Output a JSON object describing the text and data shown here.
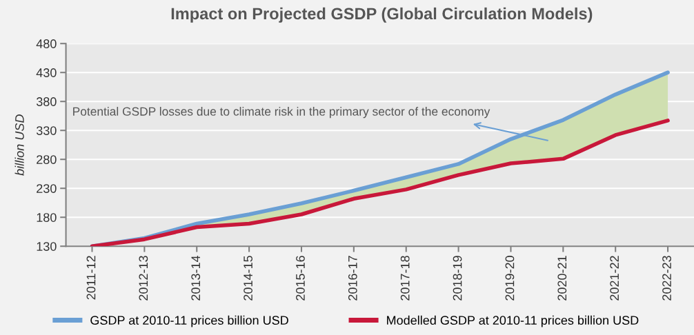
{
  "chart_data": {
    "type": "line",
    "title": "Impact on Projected GSDP (Global Circulation Models)",
    "ylabel": "billion USD",
    "categories": [
      "2011-12",
      "2012-13",
      "2013-14",
      "2014-15",
      "2015-16",
      "2016-17",
      "2017-18",
      "2018-19",
      "2019-20",
      "2020-21",
      "2021-22",
      "2022-23"
    ],
    "series": [
      {
        "name": "GSDP at 2010-11 prices billion USD",
        "color": "#6a9fd4",
        "values": [
          130,
          144,
          169,
          185,
          204,
          226,
          249,
          272,
          315,
          348,
          392,
          430
        ],
        "lower": [
          130,
          142,
          163,
          169,
          185,
          212,
          228,
          253,
          273,
          281,
          322,
          347
        ],
        "upper": [
          130,
          144,
          169,
          185,
          204,
          226,
          249,
          272,
          315,
          348,
          392,
          430
        ]
      },
      {
        "name": "Modelled GSDP at 2010-11 prices billion USD",
        "color": "#c8183a",
        "values": [
          130,
          142,
          163,
          169,
          185,
          212,
          228,
          253,
          273,
          281,
          322,
          347
        ]
      }
    ],
    "ylim": [
      130,
      480
    ],
    "yticks": [
      130,
      180,
      230,
      280,
      330,
      380,
      430,
      480
    ],
    "annotations": [
      "Potential GSDP losses due to climate risk in the primary sector of the economy"
    ],
    "grid": "y",
    "legend": "bottom"
  }
}
